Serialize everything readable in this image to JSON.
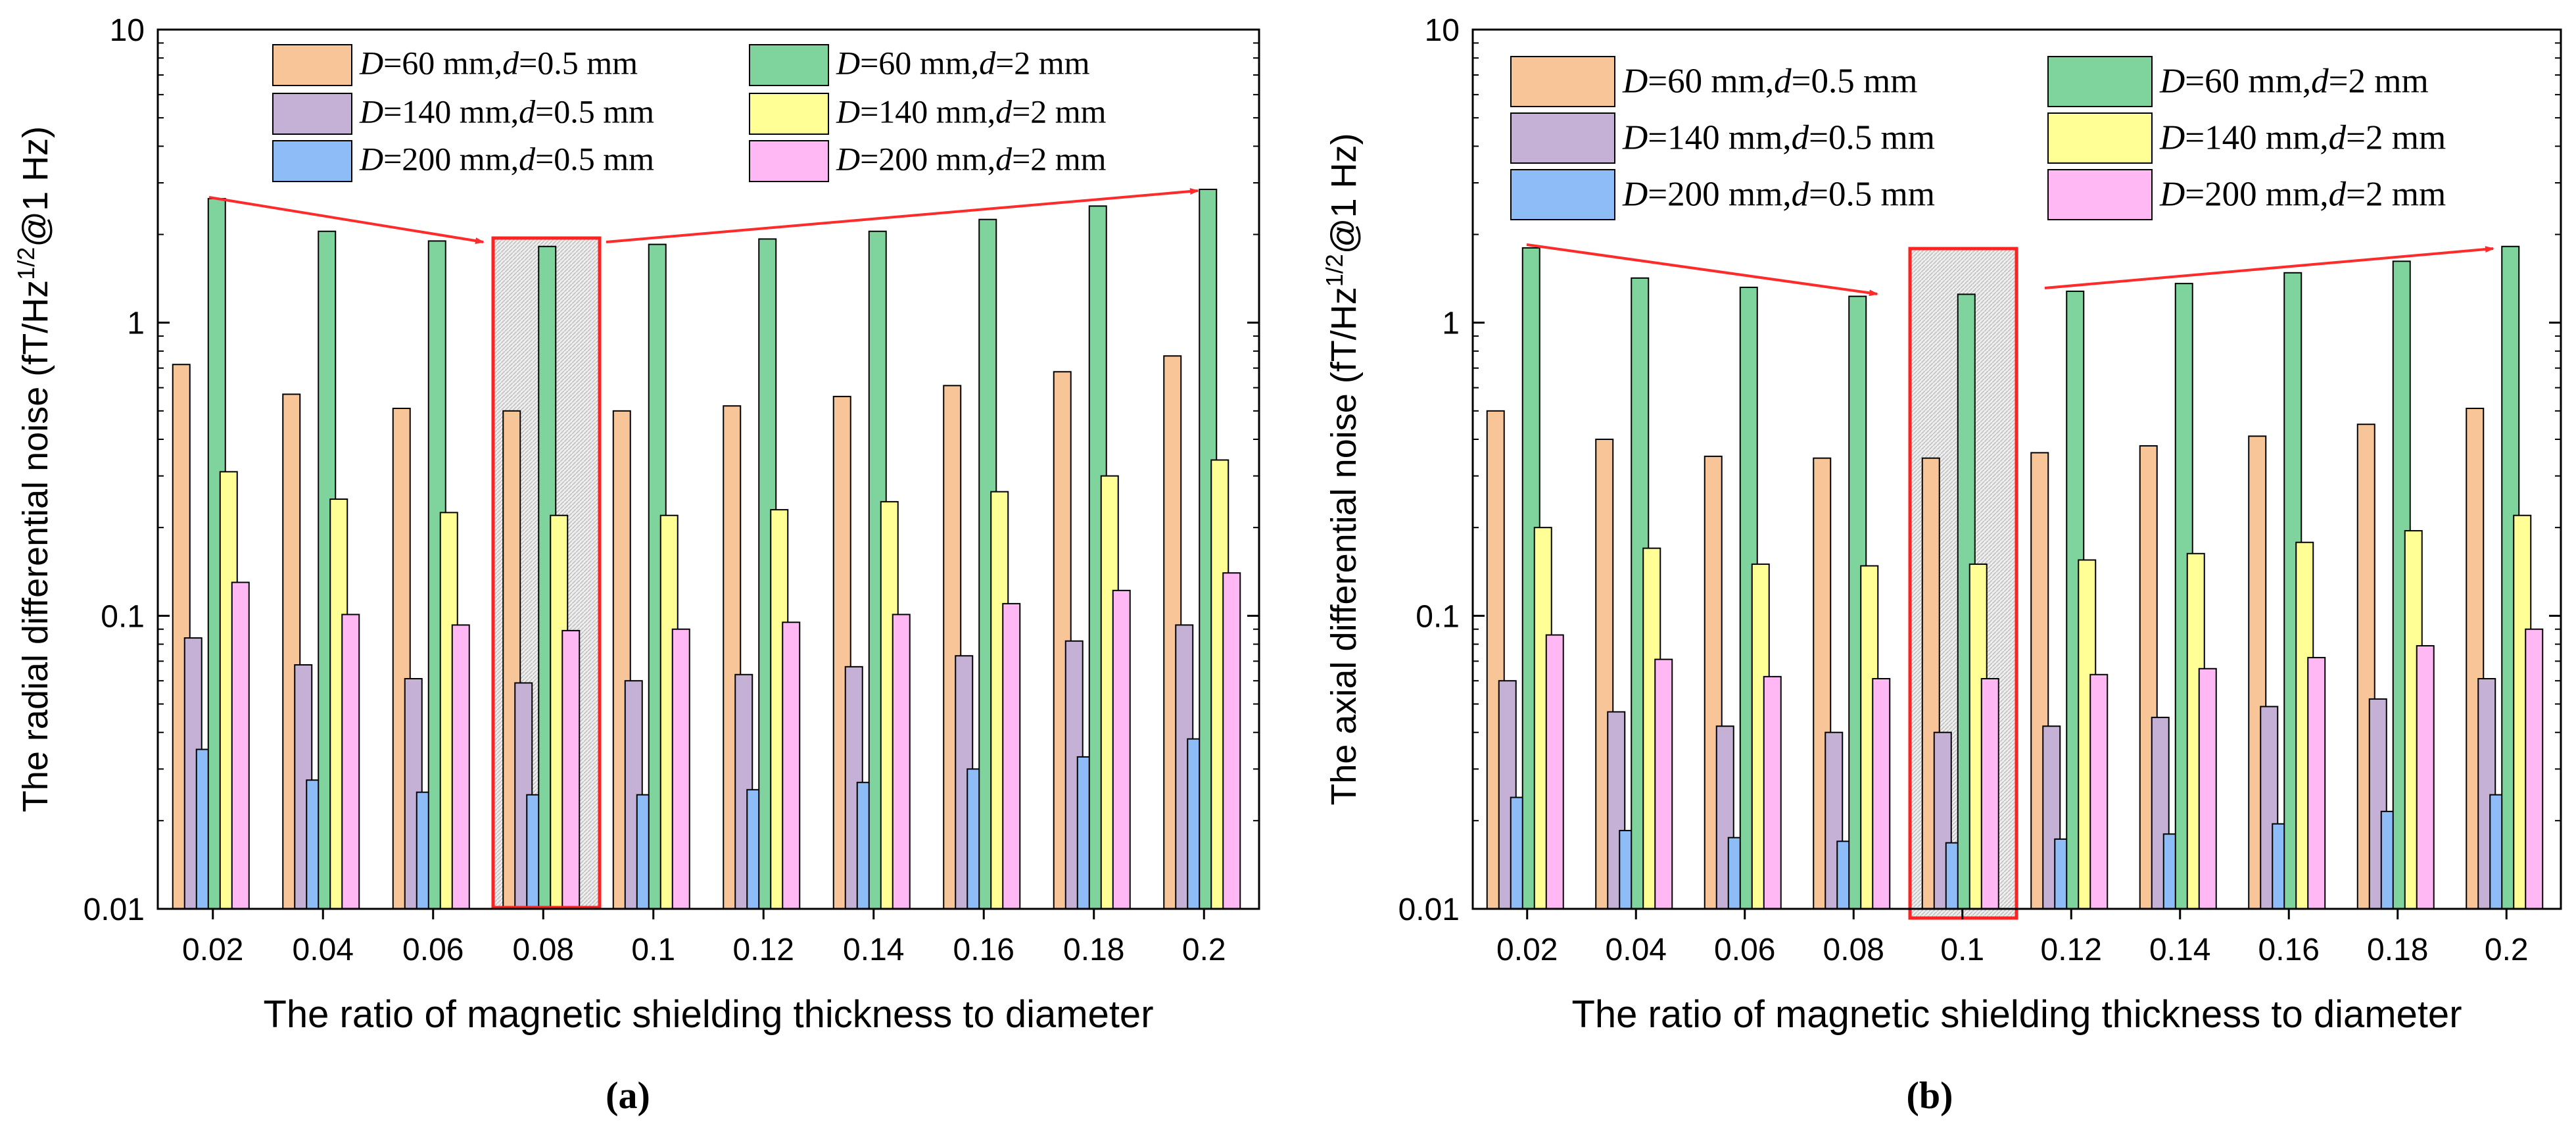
{
  "figure": {
    "panel_labels": [
      "(a)",
      "(b)"
    ]
  },
  "chart_data": [
    {
      "type": "bar",
      "panel": "(a)",
      "title": "",
      "xlabel": "The ratio of magnetic shielding thickness to diameter",
      "ylabel": "The radial  differential noise (fT/Hz1/2@1 Hz)",
      "yscale": "log",
      "ylim": [
        0.01,
        10
      ],
      "yticks": [
        "0.01",
        "0.1",
        "1",
        "10"
      ],
      "categories": [
        "0.02",
        "0.04",
        "0.06",
        "0.08",
        "0.1",
        "0.12",
        "0.14",
        "0.16",
        "0.18",
        "0.2"
      ],
      "highlight_category": "0.08",
      "legend_position": "top-center",
      "series": [
        {
          "name": "D=60 mm,d=0.5 mm",
          "color": "#F7C597",
          "values": [
            0.72,
            0.57,
            0.51,
            0.5,
            0.5,
            0.52,
            0.56,
            0.61,
            0.68,
            0.77
          ]
        },
        {
          "name": "D=60 mm,d=2 mm",
          "color": "#7ED49C",
          "values": [
            2.65,
            2.05,
            1.9,
            1.82,
            1.85,
            1.93,
            2.05,
            2.25,
            2.5,
            2.85
          ]
        },
        {
          "name": "D=140 mm,d=0.5 mm",
          "color": "#C6B1D6",
          "values": [
            0.084,
            0.068,
            0.061,
            0.059,
            0.06,
            0.063,
            0.067,
            0.073,
            0.082,
            0.093
          ]
        },
        {
          "name": "D=140 mm,d=2 mm",
          "color": "#FFFF96",
          "values": [
            0.31,
            0.25,
            0.225,
            0.22,
            0.22,
            0.23,
            0.245,
            0.265,
            0.3,
            0.34
          ]
        },
        {
          "name": "D=200 mm,d=0.5 mm",
          "color": "#8DBCF7",
          "values": [
            0.035,
            0.0275,
            0.025,
            0.0245,
            0.0245,
            0.0255,
            0.027,
            0.03,
            0.033,
            0.038
          ]
        },
        {
          "name": "D=200 mm,d=2 mm",
          "color": "#FFB8F4",
          "values": [
            0.13,
            0.101,
            0.093,
            0.089,
            0.09,
            0.095,
            0.101,
            0.11,
            0.122,
            0.14
          ]
        }
      ]
    },
    {
      "type": "bar",
      "panel": "(b)",
      "title": "",
      "xlabel": "The ratio of magnetic shielding thickness to diameter",
      "ylabel": "The axial  differential noise (fT/Hz1/2@1 Hz)",
      "yscale": "log",
      "ylim": [
        0.01,
        10
      ],
      "yticks": [
        "0.01",
        "0.1",
        "1",
        "10"
      ],
      "categories": [
        "0.02",
        "0.04",
        "0.06",
        "0.08",
        "0.1",
        "0.12",
        "0.14",
        "0.16",
        "0.18",
        "0.2"
      ],
      "highlight_category": "0.1",
      "legend_position": "top-center",
      "series": [
        {
          "name": "D=60 mm,d=0.5 mm",
          "color": "#F7C597",
          "values": [
            0.5,
            0.4,
            0.35,
            0.345,
            0.345,
            0.36,
            0.38,
            0.41,
            0.45,
            0.51
          ]
        },
        {
          "name": "D=60 mm,d=2 mm",
          "color": "#7ED49C",
          "values": [
            1.8,
            1.42,
            1.32,
            1.23,
            1.25,
            1.28,
            1.36,
            1.48,
            1.62,
            1.82
          ]
        },
        {
          "name": "D=140 mm,d=0.5 mm",
          "color": "#C6B1D6",
          "values": [
            0.06,
            0.047,
            0.042,
            0.04,
            0.04,
            0.042,
            0.045,
            0.049,
            0.052,
            0.061
          ]
        },
        {
          "name": "D=140 mm,d=2 mm",
          "color": "#FFFF96",
          "values": [
            0.2,
            0.17,
            0.15,
            0.148,
            0.15,
            0.155,
            0.163,
            0.178,
            0.195,
            0.22
          ]
        },
        {
          "name": "D=200 mm,d=0.5 mm",
          "color": "#8DBCF7",
          "values": [
            0.024,
            0.0185,
            0.0175,
            0.017,
            0.0168,
            0.0173,
            0.018,
            0.0195,
            0.0215,
            0.0245
          ]
        },
        {
          "name": "D=200 mm,d=2 mm",
          "color": "#FFB8F4",
          "values": [
            0.086,
            0.071,
            0.062,
            0.061,
            0.061,
            0.063,
            0.066,
            0.072,
            0.079,
            0.09
          ]
        }
      ]
    }
  ]
}
